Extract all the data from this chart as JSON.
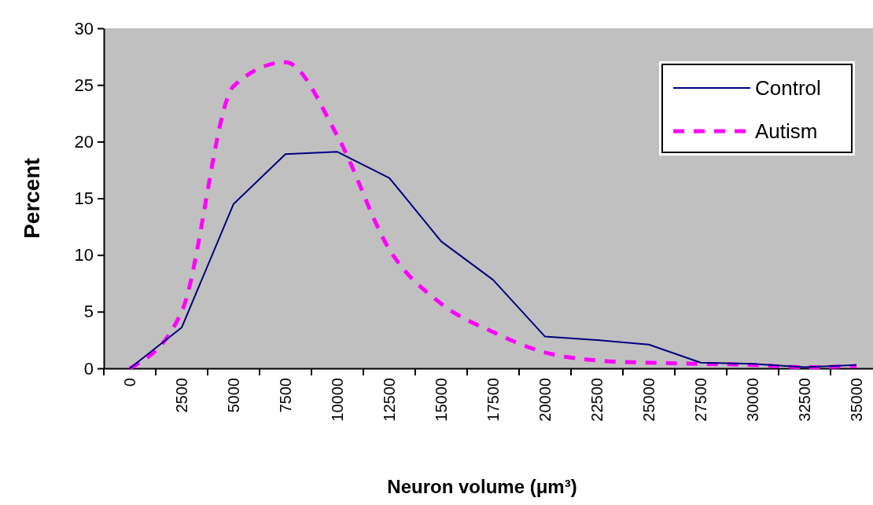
{
  "chart_data": {
    "type": "line",
    "xlabel": "Neuron volume (μm³)",
    "ylabel": "Percent",
    "categories": [
      "0",
      "2500",
      "5000",
      "7500",
      "10000",
      "12500",
      "15000",
      "17500",
      "20000",
      "22500",
      "25000",
      "27500",
      "30000",
      "32500",
      "35000"
    ],
    "ylim": [
      0,
      30
    ],
    "yticks": [
      0,
      5,
      10,
      15,
      20,
      25,
      30
    ],
    "grid": false,
    "legend": "top right",
    "marker": "none",
    "series": [
      {
        "name": "Control",
        "color": "#000080",
        "line_style": "solid",
        "values": [
          0,
          3.6,
          14.5,
          18.9,
          19.1,
          16.8,
          11.2,
          7.8,
          2.8,
          2.5,
          2.1,
          0.5,
          0.4,
          0.1,
          0.3
        ]
      },
      {
        "name": "Autism",
        "color": "#ff00ff",
        "line_style": "dashed",
        "values": [
          0,
          5.0,
          24.9,
          27.0,
          20.5,
          10.5,
          5.7,
          3.2,
          1.4,
          0.7,
          0.5,
          0.4,
          0.3,
          0.1,
          0.2
        ]
      }
    ]
  }
}
